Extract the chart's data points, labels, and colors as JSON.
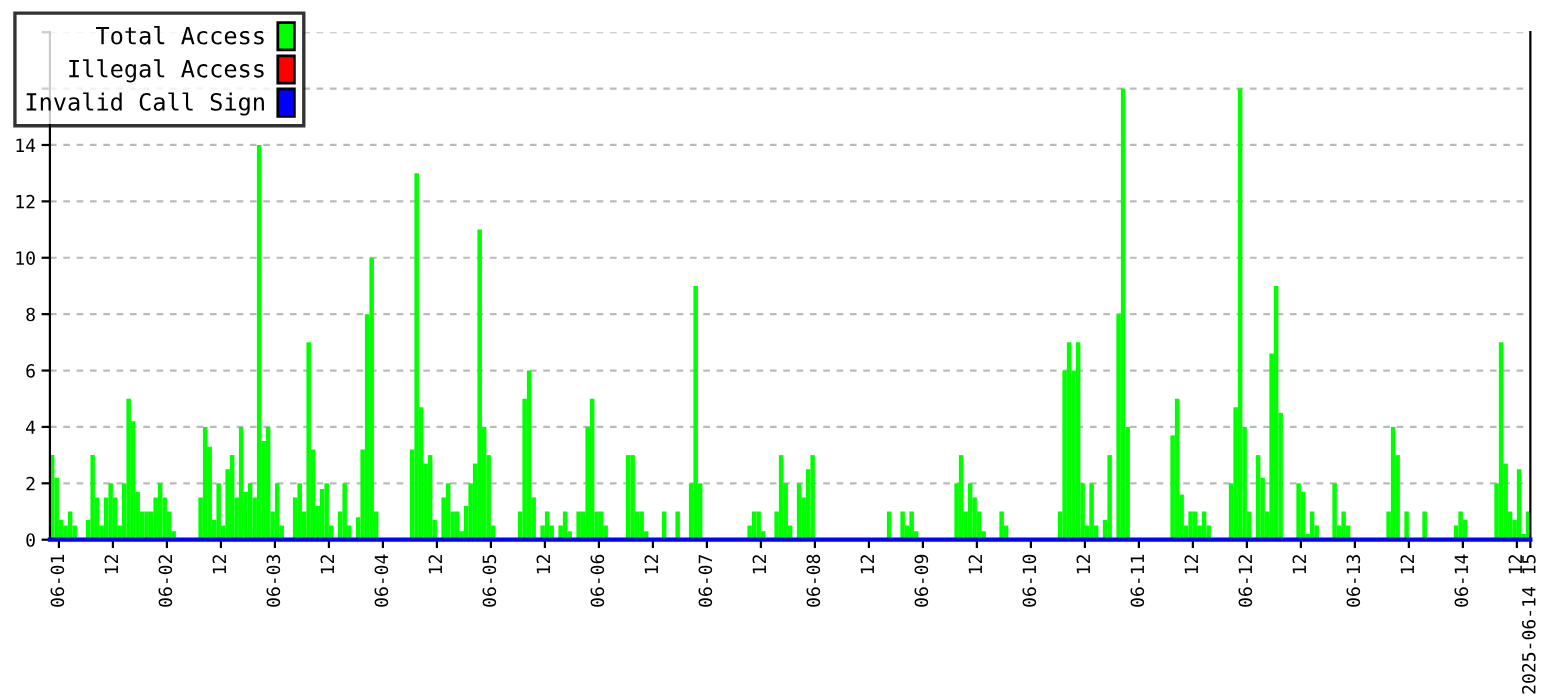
{
  "chart_data": {
    "type": "bar",
    "xlim": [
      "2025-05-31T22:00",
      "2025-06-14T15:00"
    ],
    "xticks": [
      {
        "value": "2025-06-01T00:00",
        "label": "06-01"
      },
      {
        "value": "2025-06-01T12:00",
        "label": "12"
      },
      {
        "value": "2025-06-02T00:00",
        "label": "06-02"
      },
      {
        "value": "2025-06-02T12:00",
        "label": "12"
      },
      {
        "value": "2025-06-03T00:00",
        "label": "06-03"
      },
      {
        "value": "2025-06-03T12:00",
        "label": "12"
      },
      {
        "value": "2025-06-04T00:00",
        "label": "06-04"
      },
      {
        "value": "2025-06-04T12:00",
        "label": "12"
      },
      {
        "value": "2025-06-05T00:00",
        "label": "06-05"
      },
      {
        "value": "2025-06-05T12:00",
        "label": "12"
      },
      {
        "value": "2025-06-06T00:00",
        "label": "06-06"
      },
      {
        "value": "2025-06-06T12:00",
        "label": "12"
      },
      {
        "value": "2025-06-07T00:00",
        "label": "06-07"
      },
      {
        "value": "2025-06-07T12:00",
        "label": "12"
      },
      {
        "value": "2025-06-08T00:00",
        "label": "06-08"
      },
      {
        "value": "2025-06-08T12:00",
        "label": "12"
      },
      {
        "value": "2025-06-09T00:00",
        "label": "06-09"
      },
      {
        "value": "2025-06-09T12:00",
        "label": "12"
      },
      {
        "value": "2025-06-10T00:00",
        "label": "06-10"
      },
      {
        "value": "2025-06-10T12:00",
        "label": "12"
      },
      {
        "value": "2025-06-11T00:00",
        "label": "06-11"
      },
      {
        "value": "2025-06-11T12:00",
        "label": "12"
      },
      {
        "value": "2025-06-12T00:00",
        "label": "06-12"
      },
      {
        "value": "2025-06-12T12:00",
        "label": "12"
      },
      {
        "value": "2025-06-13T00:00",
        "label": "06-13"
      },
      {
        "value": "2025-06-13T12:00",
        "label": "12"
      },
      {
        "value": "2025-06-14T00:00",
        "label": "06-14"
      },
      {
        "value": "2025-06-14T12:00",
        "label": "12"
      },
      {
        "value": "2025-06-14T15:00",
        "label": "2025-06-14 15"
      }
    ],
    "ylim": [
      0,
      18
    ],
    "yticks": [
      0,
      2,
      4,
      6,
      8,
      10,
      12,
      14,
      {
        "value": 16,
        "label": null
      },
      {
        "value": 18,
        "label": null
      }
    ],
    "grid": "y",
    "legend": "top left",
    "series": [
      {
        "name": "Total Access",
        "color": "#00ff00",
        "x": [
          "2025-05-31T22:00",
          "2025-05-31T23:00",
          "2025-06-01T00:00",
          "2025-06-01T01:00",
          "2025-06-01T02:00",
          "2025-06-01T03:00",
          "2025-06-01T06:00",
          "2025-06-01T07:00",
          "2025-06-01T08:00",
          "2025-06-01T09:00",
          "2025-06-01T10:00",
          "2025-06-01T11:00",
          "2025-06-01T12:00",
          "2025-06-01T13:00",
          "2025-06-01T14:00",
          "2025-06-01T15:00",
          "2025-06-01T16:00",
          "2025-06-01T17:00",
          "2025-06-01T18:00",
          "2025-06-01T19:00",
          "2025-06-01T20:00",
          "2025-06-01T21:00",
          "2025-06-01T22:00",
          "2025-06-01T23:00",
          "2025-06-02T00:00",
          "2025-06-02T01:00",
          "2025-06-02T07:00",
          "2025-06-02T08:00",
          "2025-06-02T09:00",
          "2025-06-02T10:00",
          "2025-06-02T11:00",
          "2025-06-02T12:00",
          "2025-06-02T13:00",
          "2025-06-02T14:00",
          "2025-06-02T15:00",
          "2025-06-02T16:00",
          "2025-06-02T17:00",
          "2025-06-02T18:00",
          "2025-06-02T19:00",
          "2025-06-02T20:00",
          "2025-06-02T21:00",
          "2025-06-02T22:00",
          "2025-06-02T23:00",
          "2025-06-03T00:00",
          "2025-06-03T01:00",
          "2025-06-03T04:00",
          "2025-06-03T05:00",
          "2025-06-03T06:00",
          "2025-06-03T07:00",
          "2025-06-03T08:00",
          "2025-06-03T09:00",
          "2025-06-03T10:00",
          "2025-06-03T11:00",
          "2025-06-03T12:00",
          "2025-06-03T14:00",
          "2025-06-03T15:00",
          "2025-06-03T16:00",
          "2025-06-03T18:00",
          "2025-06-03T19:00",
          "2025-06-03T20:00",
          "2025-06-03T21:00",
          "2025-06-03T22:00",
          "2025-06-04T06:00",
          "2025-06-04T07:00",
          "2025-06-04T08:00",
          "2025-06-04T09:00",
          "2025-06-04T10:00",
          "2025-06-04T11:00",
          "2025-06-04T13:00",
          "2025-06-04T14:00",
          "2025-06-04T15:00",
          "2025-06-04T16:00",
          "2025-06-04T17:00",
          "2025-06-04T18:00",
          "2025-06-04T19:00",
          "2025-06-04T20:00",
          "2025-06-04T21:00",
          "2025-06-04T22:00",
          "2025-06-04T23:00",
          "2025-06-05T00:00",
          "2025-06-05T06:00",
          "2025-06-05T07:00",
          "2025-06-05T08:00",
          "2025-06-05T09:00",
          "2025-06-05T11:00",
          "2025-06-05T12:00",
          "2025-06-05T13:00",
          "2025-06-05T15:00",
          "2025-06-05T16:00",
          "2025-06-05T17:00",
          "2025-06-05T19:00",
          "2025-06-05T20:00",
          "2025-06-05T21:00",
          "2025-06-05T22:00",
          "2025-06-05T23:00",
          "2025-06-06T00:00",
          "2025-06-06T01:00",
          "2025-06-06T06:00",
          "2025-06-06T07:00",
          "2025-06-06T08:00",
          "2025-06-06T09:00",
          "2025-06-06T10:00",
          "2025-06-06T14:00",
          "2025-06-06T17:00",
          "2025-06-06T20:00",
          "2025-06-06T21:00",
          "2025-06-06T22:00",
          "2025-06-07T09:00",
          "2025-06-07T10:00",
          "2025-06-07T11:00",
          "2025-06-07T12:00",
          "2025-06-07T15:00",
          "2025-06-07T16:00",
          "2025-06-07T17:00",
          "2025-06-07T18:00",
          "2025-06-07T20:00",
          "2025-06-07T21:00",
          "2025-06-07T22:00",
          "2025-06-07T23:00",
          "2025-06-08T16:00",
          "2025-06-08T19:00",
          "2025-06-08T20:00",
          "2025-06-08T21:00",
          "2025-06-08T22:00",
          "2025-06-09T07:00",
          "2025-06-09T08:00",
          "2025-06-09T09:00",
          "2025-06-09T10:00",
          "2025-06-09T11:00",
          "2025-06-09T12:00",
          "2025-06-09T13:00",
          "2025-06-09T17:00",
          "2025-06-09T18:00",
          "2025-06-10T06:00",
          "2025-06-10T07:00",
          "2025-06-10T08:00",
          "2025-06-10T09:00",
          "2025-06-10T10:00",
          "2025-06-10T11:00",
          "2025-06-10T12:00",
          "2025-06-10T13:00",
          "2025-06-10T14:00",
          "2025-06-10T16:00",
          "2025-06-10T17:00",
          "2025-06-10T19:00",
          "2025-06-10T20:00",
          "2025-06-10T21:00",
          "2025-06-11T07:00",
          "2025-06-11T08:00",
          "2025-06-11T09:00",
          "2025-06-11T10:00",
          "2025-06-11T11:00",
          "2025-06-11T12:00",
          "2025-06-11T13:00",
          "2025-06-11T14:00",
          "2025-06-11T15:00",
          "2025-06-11T20:00",
          "2025-06-11T21:00",
          "2025-06-11T22:00",
          "2025-06-11T23:00",
          "2025-06-12T00:00",
          "2025-06-12T02:00",
          "2025-06-12T03:00",
          "2025-06-12T04:00",
          "2025-06-12T05:00",
          "2025-06-12T06:00",
          "2025-06-12T07:00",
          "2025-06-12T11:00",
          "2025-06-12T12:00",
          "2025-06-12T13:00",
          "2025-06-12T14:00",
          "2025-06-12T15:00",
          "2025-06-12T19:00",
          "2025-06-12T20:00",
          "2025-06-12T21:00",
          "2025-06-12T22:00",
          "2025-06-13T07:00",
          "2025-06-13T08:00",
          "2025-06-13T09:00",
          "2025-06-13T11:00",
          "2025-06-13T15:00",
          "2025-06-13T22:00",
          "2025-06-13T23:00",
          "2025-06-14T00:00",
          "2025-06-14T07:00",
          "2025-06-14T08:00",
          "2025-06-14T09:00",
          "2025-06-14T10:00",
          "2025-06-14T11:00",
          "2025-06-14T12:00",
          "2025-06-14T13:00",
          "2025-06-14T14:00"
        ],
        "values": [
          3,
          2.2,
          0.7,
          0.5,
          1,
          0.5,
          0.7,
          3,
          1.5,
          0.5,
          1.5,
          2,
          1.5,
          0.5,
          2,
          5,
          4.2,
          1.7,
          1,
          1,
          1,
          1.5,
          2,
          1.5,
          1,
          0.3,
          1.5,
          4,
          3.3,
          0.7,
          2,
          0.5,
          2.5,
          3,
          1.5,
          4,
          1.7,
          2,
          1.5,
          14,
          3.5,
          4,
          1,
          2,
          0.5,
          1.5,
          2,
          1,
          7,
          3.2,
          1.2,
          1.8,
          2,
          0.5,
          1,
          2,
          0.5,
          0.8,
          3.2,
          8,
          10,
          1,
          3.2,
          13,
          4.7,
          2.7,
          3,
          0.7,
          1.5,
          2,
          1,
          1,
          0.3,
          1.2,
          2,
          2.7,
          11,
          4,
          3,
          0.5,
          1,
          5,
          6,
          1.5,
          0.5,
          1,
          0.5,
          0.5,
          1,
          0.3,
          1,
          1,
          4,
          5,
          1,
          1,
          0.5,
          3,
          3,
          1,
          1,
          0.3,
          1,
          1,
          2,
          9,
          2,
          0.5,
          1,
          1,
          0.3,
          1,
          3,
          2,
          0.5,
          2,
          1.5,
          2.5,
          3,
          1,
          1,
          0.5,
          1,
          0.3,
          2,
          3,
          1,
          2,
          1.5,
          1,
          0.3,
          1,
          0.5,
          1,
          6,
          7,
          6,
          7,
          2,
          0.5,
          2,
          0.5,
          0.7,
          3,
          8,
          16,
          4,
          3.7,
          5,
          1.6,
          0.5,
          1,
          1,
          0.5,
          1,
          0.5,
          2,
          4.7,
          16,
          4,
          1,
          3,
          2.2,
          1,
          6.6,
          9,
          4.5,
          2,
          1.7,
          0.2,
          1,
          0.5,
          2,
          0.5,
          1,
          0.5,
          1,
          4,
          3,
          1,
          1,
          0.5,
          1,
          0.7,
          2,
          7,
          2.7,
          1,
          0.7,
          2.5,
          0.2,
          1
        ]
      },
      {
        "name": "Illegal Access",
        "color": "#ff0000",
        "type": "line"
      },
      {
        "name": "Invalid Call Sign",
        "color": "#0000ff",
        "type": "line",
        "x": [
          "2025-05-31T22:00",
          "2025-06-14T15:00"
        ],
        "values": [
          0,
          0
        ]
      }
    ]
  }
}
